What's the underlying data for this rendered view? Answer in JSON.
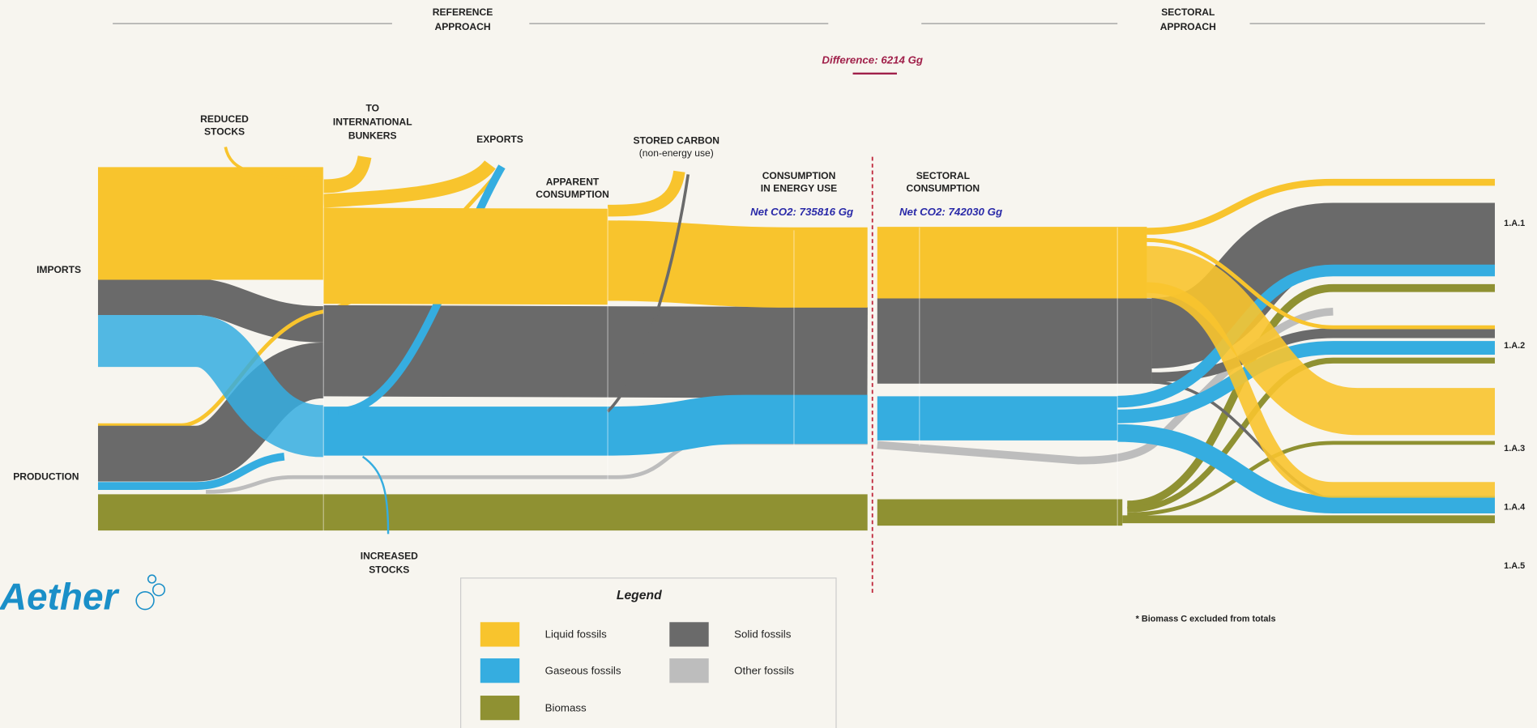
{
  "header": {
    "reference_approach": [
      "REFERENCE",
      "APPROACH"
    ],
    "sectoral_approach": [
      "SECTORAL",
      "APPROACH"
    ],
    "difference": "Difference: 6214 Gg"
  },
  "labels": {
    "reduced_stocks": [
      "REDUCED",
      "STOCKS"
    ],
    "international_bunkers": [
      "TO",
      "INTERNATIONAL",
      "BUNKERS"
    ],
    "exports": "EXPORTS",
    "apparent_consumption": [
      "APPARENT",
      "CONSUMPTION"
    ],
    "stored_carbon": [
      "STORED CARBON",
      "(non-energy use)"
    ],
    "consumption_energy_use": [
      "CONSUMPTION",
      "IN ENERGY USE"
    ],
    "net_co2_reference": "Net CO2: 735816 Gg",
    "sectoral_consumption": [
      "SECTORAL",
      "CONSUMPTION"
    ],
    "net_co2_sectoral": "Net CO2: 742030 Gg",
    "imports": "IMPORTS",
    "production": "PRODUCTION",
    "increased_stocks": [
      "INCREASED",
      "STOCKS"
    ]
  },
  "sectors": [
    "1.A.1",
    "1.A.2",
    "1.A.3",
    "1.A.4",
    "1.A.5"
  ],
  "logo": "Aether",
  "note": "* Biomass C excluded from totals",
  "legend": {
    "title": "Legend",
    "items": [
      {
        "label": "Liquid fossils",
        "color": "#f8c42d"
      },
      {
        "label": "Solid fossils",
        "color": "#6a6a6a"
      },
      {
        "label": "Gaseous fossils",
        "color": "#35ade0"
      },
      {
        "label": "Other fossils",
        "color": "#bdbdbd"
      },
      {
        "label": "Biomass",
        "color": "#8f9132"
      }
    ]
  }
}
